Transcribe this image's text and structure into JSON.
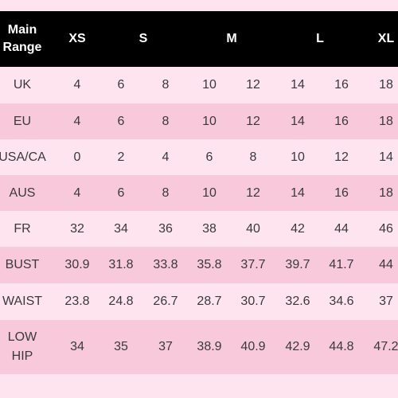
{
  "table": {
    "header": {
      "label": [
        "Main",
        "Range"
      ],
      "sizes": [
        {
          "name": "XS",
          "col": 0
        },
        {
          "name": "S",
          "col": 2
        },
        {
          "name": "M",
          "col": 4
        },
        {
          "name": "L",
          "col": 6
        },
        {
          "name": "XL",
          "col": 8
        }
      ]
    },
    "rows": [
      {
        "label": [
          "UK"
        ],
        "values": [
          "4",
          "6",
          "8",
          "10",
          "12",
          "14",
          "16",
          "18"
        ]
      },
      {
        "label": [
          "EU"
        ],
        "values": [
          "4",
          "6",
          "8",
          "10",
          "12",
          "14",
          "16",
          "18"
        ]
      },
      {
        "label": [
          "USA/CA"
        ],
        "values": [
          "0",
          "2",
          "4",
          "6",
          "8",
          "10",
          "12",
          "14"
        ]
      },
      {
        "label": [
          "AUS"
        ],
        "values": [
          "4",
          "6",
          "8",
          "10",
          "12",
          "14",
          "16",
          "18"
        ]
      },
      {
        "label": [
          "FR"
        ],
        "values": [
          "32",
          "34",
          "36",
          "38",
          "40",
          "42",
          "44",
          "46"
        ]
      },
      {
        "label": [
          "BUST"
        ],
        "values": [
          "30.9",
          "31.8",
          "33.8",
          "35.8",
          "37.7",
          "39.7",
          "41.7",
          "44"
        ]
      },
      {
        "label": [
          "WAIST"
        ],
        "values": [
          "23.8",
          "24.8",
          "26.7",
          "28.7",
          "30.7",
          "32.6",
          "34.6",
          "37"
        ]
      },
      {
        "label": [
          "LOW",
          "HIP"
        ],
        "values": [
          "34",
          "35",
          "37",
          "38.9",
          "40.9",
          "42.9",
          "44.8",
          "47.2"
        ]
      }
    ]
  },
  "colors": {
    "header_bg": "#000000",
    "header_text": "#ffffff",
    "row_light": "#fde4ee",
    "row_dark": "#f8c9da",
    "body_text": "#3a3a3a"
  }
}
